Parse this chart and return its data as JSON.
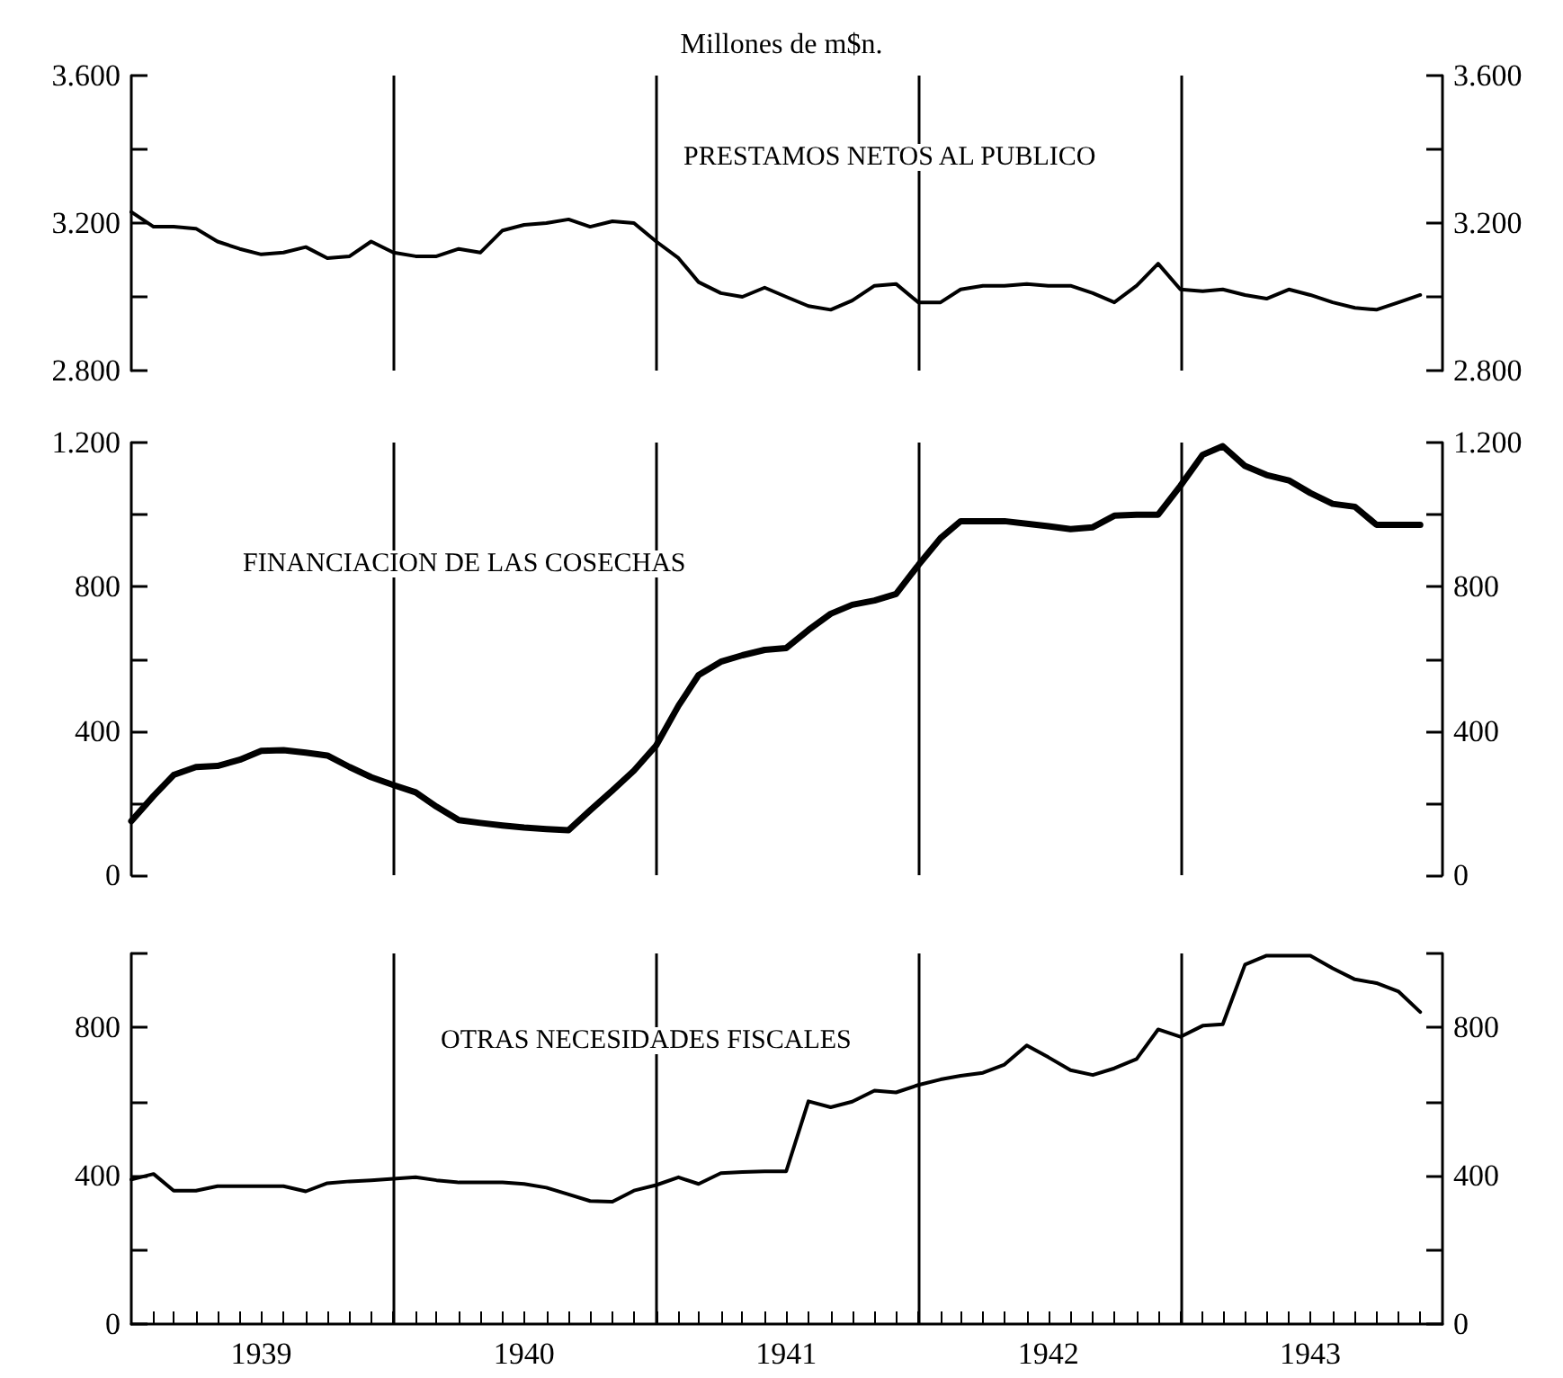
{
  "chart_data": [
    {
      "type": "line",
      "title": "Millones de m$n.",
      "tick_labels": "y",
      "marker": "none",
      "line_style": "solid",
      "x": [
        "1939-01",
        "1939-02",
        "1939-03",
        "1939-04",
        "1939-05",
        "1939-06",
        "1939-07",
        "1939-08",
        "1939-09",
        "1939-10",
        "1939-11",
        "1939-12",
        "1940-01",
        "1940-02",
        "1940-03",
        "1940-04",
        "1940-05",
        "1940-06",
        "1940-07",
        "1940-08",
        "1940-09",
        "1940-10",
        "1940-11",
        "1940-12",
        "1941-01",
        "1941-02",
        "1941-03",
        "1941-04",
        "1941-05",
        "1941-06",
        "1941-07",
        "1941-08",
        "1941-09",
        "1941-10",
        "1941-11",
        "1941-12",
        "1942-01",
        "1942-02",
        "1942-03",
        "1942-04",
        "1942-05",
        "1942-06",
        "1942-07",
        "1942-08",
        "1942-09",
        "1942-10",
        "1942-11",
        "1942-12",
        "1943-01",
        "1943-02",
        "1943-03",
        "1943-04",
        "1943-05",
        "1943-06",
        "1943-07",
        "1943-08",
        "1943-09",
        "1943-10",
        "1943-11",
        "1943-12"
      ],
      "xlim": [
        "1939-01",
        "1944-01"
      ],
      "ylim": [
        2800,
        3600
      ],
      "yticks": [
        {
          "value": 2800,
          "label": "2.800"
        },
        {
          "value": 3000,
          "label": null
        },
        {
          "value": 3200,
          "label": "3.200"
        },
        {
          "value": 3400,
          "label": null
        },
        {
          "value": 3600,
          "label": "3.600"
        }
      ],
      "y2lim": [
        2800,
        3600
      ],
      "y2ticks": [
        {
          "value": 2800,
          "label": "2.800"
        },
        {
          "value": 3000,
          "label": null
        },
        {
          "value": 3200,
          "label": "3.200"
        },
        {
          "value": 3400,
          "label": null
        },
        {
          "value": 3600,
          "label": "3.600"
        }
      ],
      "ref_lines": [
        {
          "axis": "x",
          "value": "1940-01"
        },
        {
          "axis": "x",
          "value": "1941-01"
        },
        {
          "axis": "x",
          "value": "1942-01"
        },
        {
          "axis": "x",
          "value": "1943-01"
        }
      ],
      "series": [
        {
          "name": "PRESTAMOS NETOS AL PUBLICO",
          "color": "#000000",
          "values": [
            3230,
            3190,
            3190,
            3185,
            3150,
            3130,
            3115,
            3120,
            3135,
            3105,
            3110,
            3150,
            3120,
            3110,
            3110,
            3130,
            3120,
            3180,
            3195,
            3200,
            3210,
            3190,
            3205,
            3200,
            3150,
            3105,
            3040,
            3010,
            3000,
            3025,
            3000,
            2975,
            2965,
            2990,
            3030,
            3035,
            2985,
            2985,
            3020,
            3030,
            3030,
            3035,
            3030,
            3030,
            3010,
            2985,
            3030,
            3090,
            3020,
            3015,
            3020,
            3005,
            2995,
            3020,
            3005,
            2985,
            2970,
            2965,
            2985,
            3005
          ]
        }
      ]
    },
    {
      "type": "line",
      "tick_labels": "y",
      "marker": "none",
      "line_style": "solid",
      "x": [
        "1939-01",
        "1939-02",
        "1939-03",
        "1939-04",
        "1939-05",
        "1939-06",
        "1939-07",
        "1939-08",
        "1939-09",
        "1939-10",
        "1939-11",
        "1939-12",
        "1940-01",
        "1940-02",
        "1940-03",
        "1940-04",
        "1940-05",
        "1940-06",
        "1940-07",
        "1940-08",
        "1940-09",
        "1940-10",
        "1940-11",
        "1940-12",
        "1941-01",
        "1941-02",
        "1941-03",
        "1941-04",
        "1941-05",
        "1941-06",
        "1941-07",
        "1941-08",
        "1941-09",
        "1941-10",
        "1941-11",
        "1941-12",
        "1942-01",
        "1942-02",
        "1942-03",
        "1942-04",
        "1942-05",
        "1942-06",
        "1942-07",
        "1942-08",
        "1942-09",
        "1942-10",
        "1942-11",
        "1942-12",
        "1943-01",
        "1943-02",
        "1943-03",
        "1943-04",
        "1943-05",
        "1943-06",
        "1943-07",
        "1943-08",
        "1943-09",
        "1943-10",
        "1943-11",
        "1943-12"
      ],
      "xlim": [
        "1939-01",
        "1944-01"
      ],
      "ylim": [
        0,
        1200
      ],
      "yticks": [
        0,
        {
          "value": 200,
          "label": null
        },
        400,
        {
          "value": 600,
          "label": null
        },
        800,
        {
          "value": 1000,
          "label": null
        },
        {
          "value": 1200,
          "label": "1.200"
        }
      ],
      "y2lim": [
        0,
        1200
      ],
      "y2ticks": [
        0,
        {
          "value": 200,
          "label": null
        },
        400,
        {
          "value": 600,
          "label": null
        },
        800,
        {
          "value": 1000,
          "label": null
        },
        {
          "value": 1200,
          "label": "1.200"
        }
      ],
      "ref_lines": [
        {
          "axis": "x",
          "value": "1940-01"
        },
        {
          "axis": "x",
          "value": "1941-01"
        },
        {
          "axis": "x",
          "value": "1942-01"
        },
        {
          "axis": "x",
          "value": "1943-01"
        }
      ],
      "series": [
        {
          "name": "FINANCIACION DE LAS COSECHAS",
          "color": "#000000",
          "values": [
            150,
            220,
            278,
            300,
            303,
            320,
            345,
            347,
            340,
            332,
            300,
            272,
            250,
            230,
            190,
            153,
            145,
            138,
            132,
            128,
            125,
            180,
            235,
            290,
            360,
            470,
            555,
            592,
            610,
            625,
            630,
            680,
            725,
            750,
            762,
            780,
            860,
            935,
            982,
            982,
            982,
            975,
            968,
            960,
            965,
            997,
            1000,
            1000,
            1080,
            1166,
            1190,
            1135,
            1110,
            1095,
            1060,
            1030,
            1022,
            972,
            972,
            972
          ]
        }
      ]
    },
    {
      "type": "line",
      "marker": "none",
      "line_style": "solid",
      "x": [
        "1939-01",
        "1939-02",
        "1939-03",
        "1939-04",
        "1939-05",
        "1939-06",
        "1939-07",
        "1939-08",
        "1939-09",
        "1939-10",
        "1939-11",
        "1939-12",
        "1940-01",
        "1940-02",
        "1940-03",
        "1940-04",
        "1940-05",
        "1940-06",
        "1940-07",
        "1940-08",
        "1940-09",
        "1940-10",
        "1940-11",
        "1940-12",
        "1941-01",
        "1941-02",
        "1941-03",
        "1941-04",
        "1941-05",
        "1941-06",
        "1941-07",
        "1941-08",
        "1941-09",
        "1941-10",
        "1941-11",
        "1941-12",
        "1942-01",
        "1942-02",
        "1942-03",
        "1942-04",
        "1942-05",
        "1942-06",
        "1942-07",
        "1942-08",
        "1942-09",
        "1942-10",
        "1942-11",
        "1942-12",
        "1943-01",
        "1943-02",
        "1943-03",
        "1943-04",
        "1943-05",
        "1943-06",
        "1943-07",
        "1943-08",
        "1943-09",
        "1943-10",
        "1943-11",
        "1943-12"
      ],
      "xlim": [
        "1939-01",
        "1944-01"
      ],
      "xticks": [
        {
          "value": "1939-02",
          "label": null
        },
        {
          "value": "1939-03",
          "label": null
        },
        {
          "value": "1939-04",
          "label": null
        },
        {
          "value": "1939-05",
          "label": null
        },
        {
          "value": "1939-06",
          "label": null
        },
        {
          "value": "1939-07",
          "label": "1939"
        },
        {
          "value": "1939-08",
          "label": null
        },
        {
          "value": "1939-09",
          "label": null
        },
        {
          "value": "1939-10",
          "label": null
        },
        {
          "value": "1939-11",
          "label": null
        },
        {
          "value": "1939-12",
          "label": null
        },
        {
          "value": "1940-01",
          "label": null
        },
        {
          "value": "1940-02",
          "label": null
        },
        {
          "value": "1940-03",
          "label": null
        },
        {
          "value": "1940-04",
          "label": null
        },
        {
          "value": "1940-05",
          "label": null
        },
        {
          "value": "1940-06",
          "label": null
        },
        {
          "value": "1940-07",
          "label": "1940"
        },
        {
          "value": "1940-08",
          "label": null
        },
        {
          "value": "1940-09",
          "label": null
        },
        {
          "value": "1940-10",
          "label": null
        },
        {
          "value": "1940-11",
          "label": null
        },
        {
          "value": "1940-12",
          "label": null
        },
        {
          "value": "1941-01",
          "label": null
        },
        {
          "value": "1941-02",
          "label": null
        },
        {
          "value": "1941-03",
          "label": null
        },
        {
          "value": "1941-04",
          "label": null
        },
        {
          "value": "1941-05",
          "label": null
        },
        {
          "value": "1941-06",
          "label": null
        },
        {
          "value": "1941-07",
          "label": "1941"
        },
        {
          "value": "1941-08",
          "label": null
        },
        {
          "value": "1941-09",
          "label": null
        },
        {
          "value": "1941-10",
          "label": null
        },
        {
          "value": "1941-11",
          "label": null
        },
        {
          "value": "1941-12",
          "label": null
        },
        {
          "value": "1942-01",
          "label": null
        },
        {
          "value": "1942-02",
          "label": null
        },
        {
          "value": "1942-03",
          "label": null
        },
        {
          "value": "1942-04",
          "label": null
        },
        {
          "value": "1942-05",
          "label": null
        },
        {
          "value": "1942-06",
          "label": null
        },
        {
          "value": "1942-07",
          "label": "1942"
        },
        {
          "value": "1942-08",
          "label": null
        },
        {
          "value": "1942-09",
          "label": null
        },
        {
          "value": "1942-10",
          "label": null
        },
        {
          "value": "1942-11",
          "label": null
        },
        {
          "value": "1942-12",
          "label": null
        },
        {
          "value": "1943-01",
          "label": null
        },
        {
          "value": "1943-02",
          "label": null
        },
        {
          "value": "1943-03",
          "label": null
        },
        {
          "value": "1943-04",
          "label": null
        },
        {
          "value": "1943-05",
          "label": null
        },
        {
          "value": "1943-06",
          "label": null
        },
        {
          "value": "1943-07",
          "label": "1943"
        },
        {
          "value": "1943-08",
          "label": null
        },
        {
          "value": "1943-09",
          "label": null
        },
        {
          "value": "1943-10",
          "label": null
        },
        {
          "value": "1943-11",
          "label": null
        },
        {
          "value": "1943-12",
          "label": null
        }
      ],
      "ylim": [
        0,
        1000
      ],
      "yticks": [
        0,
        {
          "value": 200,
          "label": null
        },
        400,
        {
          "value": 600,
          "label": null
        },
        800,
        {
          "value": 1000,
          "label": null
        }
      ],
      "y2lim": [
        0,
        1000
      ],
      "y2ticks": [
        0,
        {
          "value": 200,
          "label": null
        },
        400,
        {
          "value": 600,
          "label": null
        },
        800,
        {
          "value": 1000,
          "label": null
        }
      ],
      "ref_lines": [
        {
          "axis": "x",
          "value": "1940-01"
        },
        {
          "axis": "x",
          "value": "1941-01"
        },
        {
          "axis": "x",
          "value": "1942-01"
        },
        {
          "axis": "x",
          "value": "1943-01"
        }
      ],
      "series": [
        {
          "name": "OTRAS NECESIDADES FISCALES",
          "color": "#000000",
          "values": [
            390,
            405,
            360,
            360,
            372,
            372,
            372,
            372,
            358,
            380,
            385,
            388,
            392,
            396,
            388,
            382,
            382,
            382,
            378,
            368,
            350,
            332,
            330,
            360,
            375,
            396,
            378,
            407,
            410,
            412,
            412,
            601,
            585,
            600,
            630,
            625,
            645,
            660,
            670,
            678,
            700,
            752,
            720,
            685,
            672,
            690,
            715,
            795,
            775,
            805,
            809,
            970,
            994,
            994,
            994,
            960,
            930,
            920,
            897,
            842
          ]
        }
      ]
    }
  ]
}
